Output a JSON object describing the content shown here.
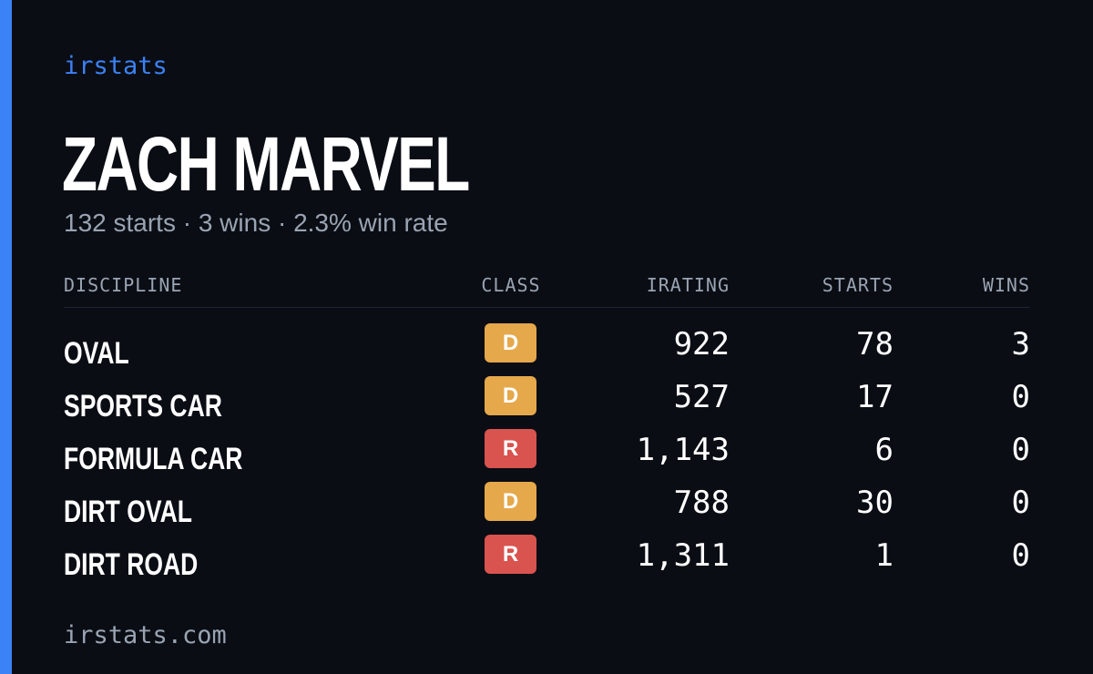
{
  "brand": "irstats",
  "driver": {
    "name": "ZACH MARVEL",
    "summary": "132 starts · 3 wins · 2.3% win rate"
  },
  "table": {
    "headers": {
      "discipline": "DISCIPLINE",
      "class": "CLASS",
      "irating": "IRATING",
      "starts": "STARTS",
      "wins": "WINS"
    },
    "rows": [
      {
        "discipline": "OVAL",
        "class": "D",
        "irating": "922",
        "starts": "78",
        "wins": "3"
      },
      {
        "discipline": "SPORTS CAR",
        "class": "D",
        "irating": "527",
        "starts": "17",
        "wins": "0"
      },
      {
        "discipline": "FORMULA CAR",
        "class": "R",
        "irating": "1,143",
        "starts": "6",
        "wins": "0"
      },
      {
        "discipline": "DIRT OVAL",
        "class": "D",
        "irating": "788",
        "starts": "30",
        "wins": "0"
      },
      {
        "discipline": "DIRT ROAD",
        "class": "R",
        "irating": "1,311",
        "starts": "1",
        "wins": "0"
      }
    ]
  },
  "class_colors": {
    "D": "#e5a84b",
    "R": "#d9534f"
  },
  "footer": "irstats.com"
}
